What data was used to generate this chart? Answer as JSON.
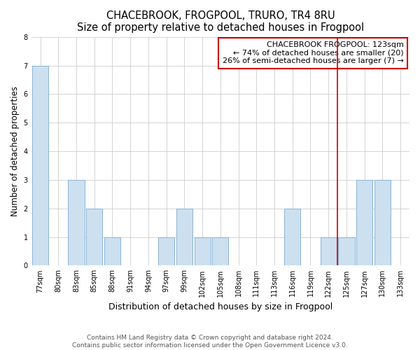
{
  "title": "CHACEBROOK, FROGPOOL, TRURO, TR4 8RU",
  "subtitle": "Size of property relative to detached houses in Frogpool",
  "xlabel": "Distribution of detached houses by size in Frogpool",
  "ylabel": "Number of detached properties",
  "categories": [
    "77sqm",
    "80sqm",
    "83sqm",
    "85sqm",
    "88sqm",
    "91sqm",
    "94sqm",
    "97sqm",
    "99sqm",
    "102sqm",
    "105sqm",
    "108sqm",
    "111sqm",
    "113sqm",
    "116sqm",
    "119sqm",
    "122sqm",
    "125sqm",
    "127sqm",
    "130sqm",
    "133sqm"
  ],
  "values": [
    7,
    0,
    3,
    2,
    1,
    0,
    0,
    1,
    2,
    1,
    1,
    0,
    0,
    0,
    2,
    0,
    1,
    1,
    3,
    3,
    0
  ],
  "bar_color": "#cce0f0",
  "bar_edge_color": "#8ab4d4",
  "property_line_color": "#cc0000",
  "property_line_x": 16.5,
  "annotation_text": "CHACEBROOK FROGPOOL: 123sqm\n← 74% of detached houses are smaller (20)\n26% of semi-detached houses are larger (7) →",
  "annotation_box_color": "#cc0000",
  "ylim": [
    0,
    8
  ],
  "yticks": [
    0,
    1,
    2,
    3,
    4,
    5,
    6,
    7,
    8
  ],
  "footer_line1": "Contains HM Land Registry data © Crown copyright and database right 2024.",
  "footer_line2": "Contains public sector information licensed under the Open Government Licence v3.0.",
  "background_color": "#ffffff",
  "plot_background_color": "#ffffff",
  "grid_color": "#cccccc",
  "title_fontsize": 10.5,
  "subtitle_fontsize": 9.5,
  "xlabel_fontsize": 9,
  "ylabel_fontsize": 8.5,
  "tick_fontsize": 7,
  "annotation_fontsize": 8,
  "footer_fontsize": 6.5
}
